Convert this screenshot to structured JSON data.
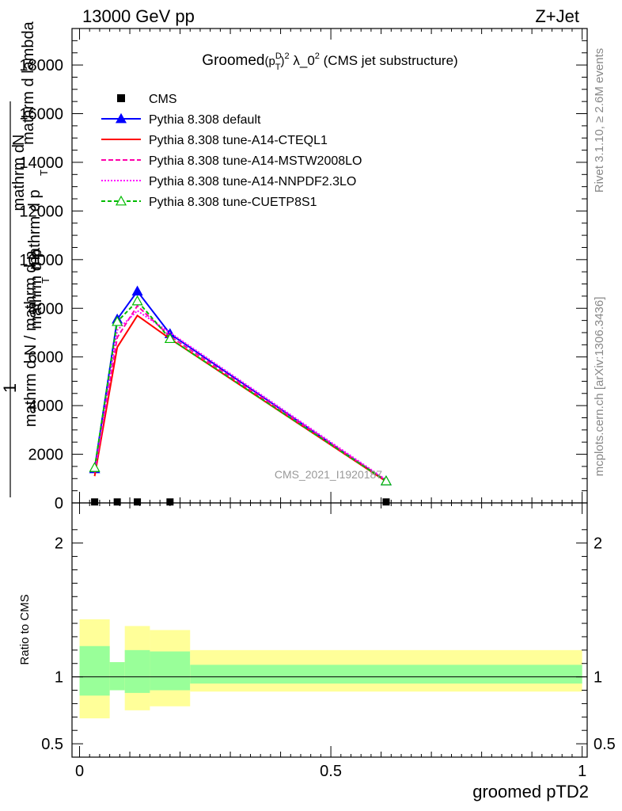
{
  "header": {
    "left": "13000 GeV pp",
    "right": "Z+Jet"
  },
  "plot_title": {
    "main": "Groomed",
    "formula": "(p",
    "sup_d": "D",
    "sub_t": "T",
    "close": ")",
    "exp2": "2",
    "lambda": " λ_0",
    "exp2b": "2",
    "rest": " (CMS jet substructure)"
  },
  "side_labels": {
    "rivet": "Rivet 3.1.10, ≥ 2.6M events",
    "mcplots": "mcplots.cern.ch [arXiv:1306.3436]"
  },
  "watermark": "CMS_2021_I1920187",
  "ylabel_main": {
    "one": "1",
    "num1": "mathrm d",
    "num1b": "N",
    "den1": "mathrm d p",
    "den1b": "mathrm d lambda",
    "den2": "mathrm d N / mathrm d p",
    "den2b": "mathrm d p",
    "sub_t": "T",
    "sub_t2": "T"
  },
  "ylabel_ratio": "Ratio to CMS",
  "xlabel": "groomed pTD2",
  "chart_data": {
    "type": "line",
    "xlim": [
      -0.015,
      1.01
    ],
    "ylim": [
      0,
      19500
    ],
    "ratio_ylim": [
      0.4,
      2.3
    ],
    "x_ticks": [
      {
        "value": 0,
        "label": "0"
      },
      {
        "value": 0.5,
        "label": "0.5"
      },
      {
        "value": 1,
        "label": "1"
      }
    ],
    "y_ticks": [
      {
        "value": 0,
        "label": "0"
      },
      {
        "value": 2000,
        "label": "2000"
      },
      {
        "value": 4000,
        "label": "4000"
      },
      {
        "value": 6000,
        "label": "6000"
      },
      {
        "value": 8000,
        "label": "8000"
      },
      {
        "value": 10000,
        "label": "10000"
      },
      {
        "value": 12000,
        "label": "12000"
      },
      {
        "value": 14000,
        "label": "14000"
      },
      {
        "value": 16000,
        "label": "16000"
      },
      {
        "value": 18000,
        "label": "18000"
      }
    ],
    "ratio_ticks": [
      {
        "value": 0.5,
        "label": "0.5"
      },
      {
        "value": 1,
        "label": "1"
      },
      {
        "value": 2,
        "label": "2"
      }
    ],
    "data": {
      "name": "CMS",
      "x": [
        0.03,
        0.075,
        0.115,
        0.18,
        0.61
      ],
      "y": [
        40,
        40,
        40,
        40,
        40
      ],
      "color": "#000000"
    },
    "series": [
      {
        "name": "Pythia 8.308 default",
        "color": "#0000ff",
        "dash": "none",
        "marker": "triangle-filled",
        "x": [
          0.03,
          0.075,
          0.115,
          0.18,
          0.61
        ],
        "y": [
          1400,
          7550,
          8700,
          6950,
          900
        ]
      },
      {
        "name": "Pythia 8.308 tune-A14-CTEQL1",
        "color": "#ff0000",
        "dash": "none",
        "marker": "none",
        "x": [
          0.03,
          0.075,
          0.115,
          0.18,
          0.61
        ],
        "y": [
          1100,
          6400,
          7700,
          6750,
          880
        ]
      },
      {
        "name": "Pythia 8.308 tune-A14-MSTW2008LO",
        "color": "#ff00aa",
        "dash": "6,3",
        "marker": "none",
        "x": [
          0.03,
          0.075,
          0.115,
          0.18,
          0.61
        ],
        "y": [
          1250,
          6800,
          8100,
          6850,
          920
        ]
      },
      {
        "name": "Pythia 8.308 tune-A14-NNPDF2.3LO",
        "color": "#ff00ff",
        "dash": "2,2",
        "marker": "none",
        "x": [
          0.03,
          0.075,
          0.115,
          0.18,
          0.61
        ],
        "y": [
          1300,
          7100,
          7900,
          7000,
          950
        ]
      },
      {
        "name": "Pythia 8.308 tune-CUETP8S1",
        "color": "#00bb00",
        "dash": "5,3",
        "marker": "triangle-open",
        "x": [
          0.03,
          0.075,
          0.115,
          0.18,
          0.61
        ],
        "y": [
          1450,
          7450,
          8300,
          6750,
          900
        ]
      }
    ],
    "ratio_bands": {
      "edges": [
        0,
        0.06,
        0.09,
        0.14,
        0.22,
        1.0
      ],
      "yellow_lo": [
        0.69,
        0.9,
        0.75,
        0.78,
        0.89
      ],
      "yellow_hi": [
        1.43,
        1.11,
        1.38,
        1.35,
        1.2
      ],
      "green_lo": [
        0.86,
        0.9,
        0.88,
        0.9,
        0.95
      ],
      "green_hi": [
        1.23,
        1.11,
        1.2,
        1.19,
        1.09
      ],
      "yellow_color": "#ffff99",
      "green_color": "#99ff99"
    }
  }
}
